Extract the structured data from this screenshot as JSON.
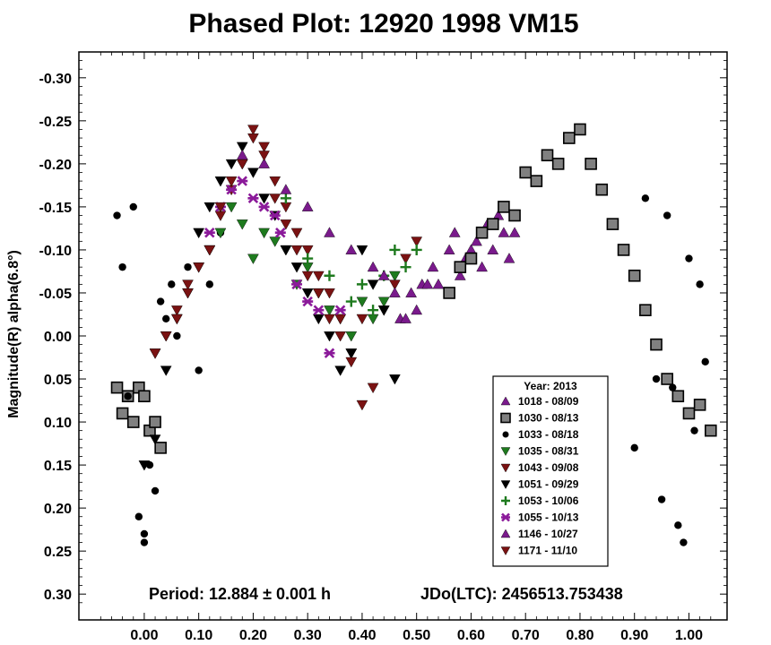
{
  "chart_data": {
    "type": "scatter",
    "title": "Phased Plot: 12920 1998 VM15",
    "xlabel": "",
    "ylabel": "Magnitude(R) alpha(6.8°)",
    "xlim": [
      -0.12,
      1.07
    ],
    "ylim": [
      -0.33,
      0.33
    ],
    "y_inverted": true,
    "x_ticks": [
      "0.00",
      "0.10",
      "0.20",
      "0.30",
      "0.40",
      "0.50",
      "0.60",
      "0.70",
      "0.80",
      "0.90",
      "1.00"
    ],
    "y_ticks": [
      "-0.30",
      "-0.25",
      "-0.20",
      "-0.15",
      "-0.10",
      "-0.05",
      "0.00",
      "0.05",
      "0.10",
      "0.15",
      "0.20",
      "0.25",
      "0.30"
    ],
    "period_text": "Period: 12.884 ± 0.001 h",
    "jdo_text": "JDo(LTC): 2456513.753438",
    "legend_title": "Year: 2013",
    "legend_position": "bottom-right",
    "series": [
      {
        "name": "1018 - 08/09",
        "marker": "triangle-up",
        "color": "#7a1a8c",
        "x": [
          0.54,
          0.56,
          0.57,
          0.58,
          0.59,
          0.6,
          0.61,
          0.62,
          0.63,
          0.64,
          0.65,
          0.66,
          0.67,
          0.68,
          0.47,
          0.49,
          0.51,
          0.53
        ],
        "y": [
          -0.06,
          -0.1,
          -0.12,
          -0.07,
          -0.09,
          -0.1,
          -0.11,
          -0.08,
          -0.13,
          -0.1,
          -0.14,
          -0.12,
          -0.09,
          -0.12,
          -0.02,
          -0.05,
          -0.06,
          -0.08
        ]
      },
      {
        "name": "1030 - 08/13",
        "marker": "square",
        "color": "#808080",
        "x": [
          -0.05,
          -0.04,
          -0.03,
          -0.02,
          -0.01,
          0.0,
          0.01,
          0.02,
          0.03,
          0.56,
          0.58,
          0.6,
          0.62,
          0.64,
          0.66,
          0.68,
          0.7,
          0.72,
          0.74,
          0.76,
          0.78,
          0.8,
          0.82,
          0.84,
          0.86,
          0.88,
          0.9,
          0.92,
          0.94,
          0.96,
          0.98,
          1.0,
          1.02,
          1.04
        ],
        "y": [
          0.06,
          0.09,
          0.07,
          0.1,
          0.06,
          0.07,
          0.11,
          0.1,
          0.13,
          -0.05,
          -0.08,
          -0.09,
          -0.12,
          -0.13,
          -0.15,
          -0.14,
          -0.19,
          -0.18,
          -0.21,
          -0.2,
          -0.23,
          -0.24,
          -0.2,
          -0.17,
          -0.13,
          -0.1,
          -0.07,
          -0.03,
          0.01,
          0.05,
          0.07,
          0.09,
          0.08,
          0.11
        ]
      },
      {
        "name": "1033 - 08/18",
        "marker": "circle",
        "color": "#000000",
        "x": [
          -0.05,
          -0.04,
          -0.03,
          -0.02,
          -0.01,
          0.0,
          0.0,
          0.01,
          0.02,
          0.03,
          0.04,
          0.05,
          0.06,
          0.08,
          0.1,
          0.12,
          0.14,
          0.9,
          0.92,
          0.94,
          0.95,
          0.96,
          0.97,
          0.98,
          0.99,
          1.0,
          1.01,
          1.02,
          1.03
        ],
        "y": [
          -0.14,
          -0.08,
          0.07,
          -0.15,
          0.21,
          0.24,
          0.23,
          0.15,
          0.18,
          -0.04,
          -0.02,
          -0.06,
          0.0,
          -0.08,
          0.04,
          -0.06,
          -0.12,
          0.13,
          -0.16,
          0.05,
          0.19,
          -0.14,
          0.06,
          0.22,
          0.24,
          -0.09,
          0.11,
          -0.06,
          0.03
        ]
      },
      {
        "name": "1035 - 08/31",
        "marker": "triangle-down",
        "color": "#1e7a1e",
        "x": [
          0.12,
          0.14,
          0.16,
          0.18,
          0.2,
          0.22,
          0.24,
          0.26,
          0.28,
          0.3,
          0.32,
          0.34,
          0.36,
          0.38,
          0.4,
          0.42,
          0.44,
          0.46
        ],
        "y": [
          -0.1,
          -0.12,
          -0.15,
          -0.13,
          -0.09,
          -0.12,
          -0.11,
          -0.1,
          -0.06,
          -0.08,
          -0.05,
          -0.03,
          -0.02,
          0.0,
          -0.04,
          -0.02,
          -0.04,
          -0.07
        ]
      },
      {
        "name": "1043 - 09/08",
        "marker": "triangle-down",
        "color": "#7a1212",
        "x": [
          0.02,
          0.04,
          0.06,
          0.08,
          0.1,
          0.12,
          0.14,
          0.16,
          0.18,
          0.2,
          0.22,
          0.24,
          0.26,
          0.28,
          0.3,
          0.32,
          0.34,
          0.36,
          0.38,
          0.4,
          0.42,
          0.44,
          0.46,
          0.48,
          0.5
        ],
        "y": [
          0.02,
          0.0,
          -0.03,
          -0.06,
          -0.08,
          -0.1,
          -0.14,
          -0.17,
          -0.2,
          -0.24,
          -0.22,
          -0.18,
          -0.15,
          -0.12,
          -0.1,
          -0.07,
          -0.05,
          -0.02,
          0.02,
          0.08,
          0.06,
          -0.03,
          -0.06,
          -0.09,
          -0.11
        ]
      },
      {
        "name": "1051 - 09/29",
        "marker": "triangle-down",
        "color": "#000000",
        "x": [
          0.0,
          0.02,
          0.04,
          0.06,
          0.08,
          0.1,
          0.12,
          0.14,
          0.16,
          0.18,
          0.2,
          0.22,
          0.24,
          0.26,
          0.28,
          0.3,
          0.32,
          0.34,
          0.36,
          0.38,
          0.4,
          0.42,
          0.44,
          0.46
        ],
        "y": [
          0.15,
          0.12,
          0.04,
          -0.02,
          -0.05,
          -0.12,
          -0.15,
          -0.18,
          -0.2,
          -0.22,
          -0.19,
          -0.16,
          -0.14,
          -0.1,
          -0.08,
          -0.05,
          -0.02,
          0.0,
          0.04,
          0.02,
          -0.1,
          -0.06,
          -0.03,
          0.05
        ]
      },
      {
        "name": "1053 - 10/06",
        "marker": "plus",
        "color": "#1e7a1e",
        "x": [
          0.26,
          0.3,
          0.34,
          0.38,
          0.4,
          0.42,
          0.44,
          0.46,
          0.48,
          0.5
        ],
        "y": [
          -0.16,
          -0.09,
          -0.07,
          -0.04,
          -0.06,
          -0.03,
          -0.07,
          -0.1,
          -0.08,
          -0.1
        ]
      },
      {
        "name": "1055 - 10/13",
        "marker": "asterisk",
        "color": "#8b1a9a",
        "x": [
          0.12,
          0.14,
          0.16,
          0.18,
          0.2,
          0.22,
          0.24,
          0.25,
          0.28,
          0.3,
          0.32,
          0.34,
          0.36
        ],
        "y": [
          -0.12,
          -0.15,
          -0.17,
          -0.18,
          -0.16,
          -0.15,
          -0.14,
          -0.12,
          -0.06,
          -0.04,
          -0.03,
          0.02,
          -0.03
        ]
      },
      {
        "name": "1146 - 10/27",
        "marker": "triangle-up",
        "color": "#7a1a8c",
        "x": [
          0.18,
          0.22,
          0.26,
          0.3,
          0.34,
          0.38,
          0.42,
          0.44,
          0.46,
          0.48,
          0.5,
          0.52
        ],
        "y": [
          -0.21,
          -0.2,
          -0.17,
          -0.15,
          -0.12,
          -0.1,
          -0.08,
          -0.07,
          -0.05,
          -0.02,
          -0.03,
          -0.06
        ]
      },
      {
        "name": "1171 - 11/10",
        "marker": "triangle-down",
        "color": "#7a1212",
        "x": [
          0.02,
          0.04,
          0.06,
          0.08,
          0.1,
          0.12,
          0.14,
          0.16,
          0.18,
          0.2,
          0.22,
          0.24,
          0.26,
          0.28,
          0.3,
          0.32,
          0.34,
          0.36,
          0.38,
          0.4
        ],
        "y": [
          0.02,
          0.0,
          -0.02,
          -0.05,
          -0.08,
          -0.1,
          -0.15,
          -0.18,
          -0.2,
          -0.23,
          -0.21,
          -0.16,
          -0.13,
          -0.1,
          -0.07,
          -0.05,
          -0.02,
          0.0,
          0.03,
          -0.02
        ]
      }
    ]
  }
}
